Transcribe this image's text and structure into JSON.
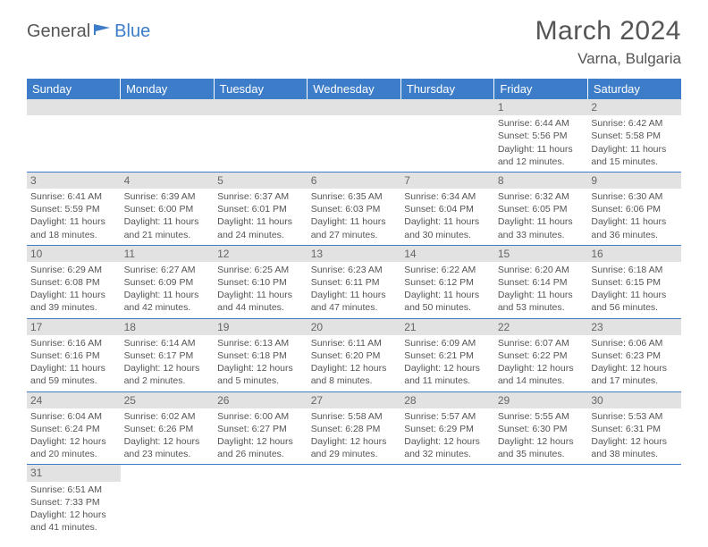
{
  "logo": {
    "part1": "General",
    "part2": "Blue"
  },
  "title": "March 2024",
  "location": "Varna, Bulgaria",
  "colors": {
    "header_bg": "#3d7cc9",
    "header_text": "#ffffff",
    "daynum_bg": "#e2e2e2",
    "text": "#555555",
    "row_divider": "#3d7cc9",
    "page_bg": "#ffffff"
  },
  "weekdays": [
    "Sunday",
    "Monday",
    "Tuesday",
    "Wednesday",
    "Thursday",
    "Friday",
    "Saturday"
  ],
  "days": [
    {
      "num": 1,
      "sunrise": "6:44 AM",
      "sunset": "5:56 PM",
      "daylight": "11 hours and 12 minutes."
    },
    {
      "num": 2,
      "sunrise": "6:42 AM",
      "sunset": "5:58 PM",
      "daylight": "11 hours and 15 minutes."
    },
    {
      "num": 3,
      "sunrise": "6:41 AM",
      "sunset": "5:59 PM",
      "daylight": "11 hours and 18 minutes."
    },
    {
      "num": 4,
      "sunrise": "6:39 AM",
      "sunset": "6:00 PM",
      "daylight": "11 hours and 21 minutes."
    },
    {
      "num": 5,
      "sunrise": "6:37 AM",
      "sunset": "6:01 PM",
      "daylight": "11 hours and 24 minutes."
    },
    {
      "num": 6,
      "sunrise": "6:35 AM",
      "sunset": "6:03 PM",
      "daylight": "11 hours and 27 minutes."
    },
    {
      "num": 7,
      "sunrise": "6:34 AM",
      "sunset": "6:04 PM",
      "daylight": "11 hours and 30 minutes."
    },
    {
      "num": 8,
      "sunrise": "6:32 AM",
      "sunset": "6:05 PM",
      "daylight": "11 hours and 33 minutes."
    },
    {
      "num": 9,
      "sunrise": "6:30 AM",
      "sunset": "6:06 PM",
      "daylight": "11 hours and 36 minutes."
    },
    {
      "num": 10,
      "sunrise": "6:29 AM",
      "sunset": "6:08 PM",
      "daylight": "11 hours and 39 minutes."
    },
    {
      "num": 11,
      "sunrise": "6:27 AM",
      "sunset": "6:09 PM",
      "daylight": "11 hours and 42 minutes."
    },
    {
      "num": 12,
      "sunrise": "6:25 AM",
      "sunset": "6:10 PM",
      "daylight": "11 hours and 44 minutes."
    },
    {
      "num": 13,
      "sunrise": "6:23 AM",
      "sunset": "6:11 PM",
      "daylight": "11 hours and 47 minutes."
    },
    {
      "num": 14,
      "sunrise": "6:22 AM",
      "sunset": "6:12 PM",
      "daylight": "11 hours and 50 minutes."
    },
    {
      "num": 15,
      "sunrise": "6:20 AM",
      "sunset": "6:14 PM",
      "daylight": "11 hours and 53 minutes."
    },
    {
      "num": 16,
      "sunrise": "6:18 AM",
      "sunset": "6:15 PM",
      "daylight": "11 hours and 56 minutes."
    },
    {
      "num": 17,
      "sunrise": "6:16 AM",
      "sunset": "6:16 PM",
      "daylight": "11 hours and 59 minutes."
    },
    {
      "num": 18,
      "sunrise": "6:14 AM",
      "sunset": "6:17 PM",
      "daylight": "12 hours and 2 minutes."
    },
    {
      "num": 19,
      "sunrise": "6:13 AM",
      "sunset": "6:18 PM",
      "daylight": "12 hours and 5 minutes."
    },
    {
      "num": 20,
      "sunrise": "6:11 AM",
      "sunset": "6:20 PM",
      "daylight": "12 hours and 8 minutes."
    },
    {
      "num": 21,
      "sunrise": "6:09 AM",
      "sunset": "6:21 PM",
      "daylight": "12 hours and 11 minutes."
    },
    {
      "num": 22,
      "sunrise": "6:07 AM",
      "sunset": "6:22 PM",
      "daylight": "12 hours and 14 minutes."
    },
    {
      "num": 23,
      "sunrise": "6:06 AM",
      "sunset": "6:23 PM",
      "daylight": "12 hours and 17 minutes."
    },
    {
      "num": 24,
      "sunrise": "6:04 AM",
      "sunset": "6:24 PM",
      "daylight": "12 hours and 20 minutes."
    },
    {
      "num": 25,
      "sunrise": "6:02 AM",
      "sunset": "6:26 PM",
      "daylight": "12 hours and 23 minutes."
    },
    {
      "num": 26,
      "sunrise": "6:00 AM",
      "sunset": "6:27 PM",
      "daylight": "12 hours and 26 minutes."
    },
    {
      "num": 27,
      "sunrise": "5:58 AM",
      "sunset": "6:28 PM",
      "daylight": "12 hours and 29 minutes."
    },
    {
      "num": 28,
      "sunrise": "5:57 AM",
      "sunset": "6:29 PM",
      "daylight": "12 hours and 32 minutes."
    },
    {
      "num": 29,
      "sunrise": "5:55 AM",
      "sunset": "6:30 PM",
      "daylight": "12 hours and 35 minutes."
    },
    {
      "num": 30,
      "sunrise": "5:53 AM",
      "sunset": "6:31 PM",
      "daylight": "12 hours and 38 minutes."
    },
    {
      "num": 31,
      "sunrise": "6:51 AM",
      "sunset": "7:33 PM",
      "daylight": "12 hours and 41 minutes."
    }
  ],
  "start_weekday_index": 5,
  "labels": {
    "sunrise": "Sunrise:",
    "sunset": "Sunset:",
    "daylight": "Daylight:"
  }
}
